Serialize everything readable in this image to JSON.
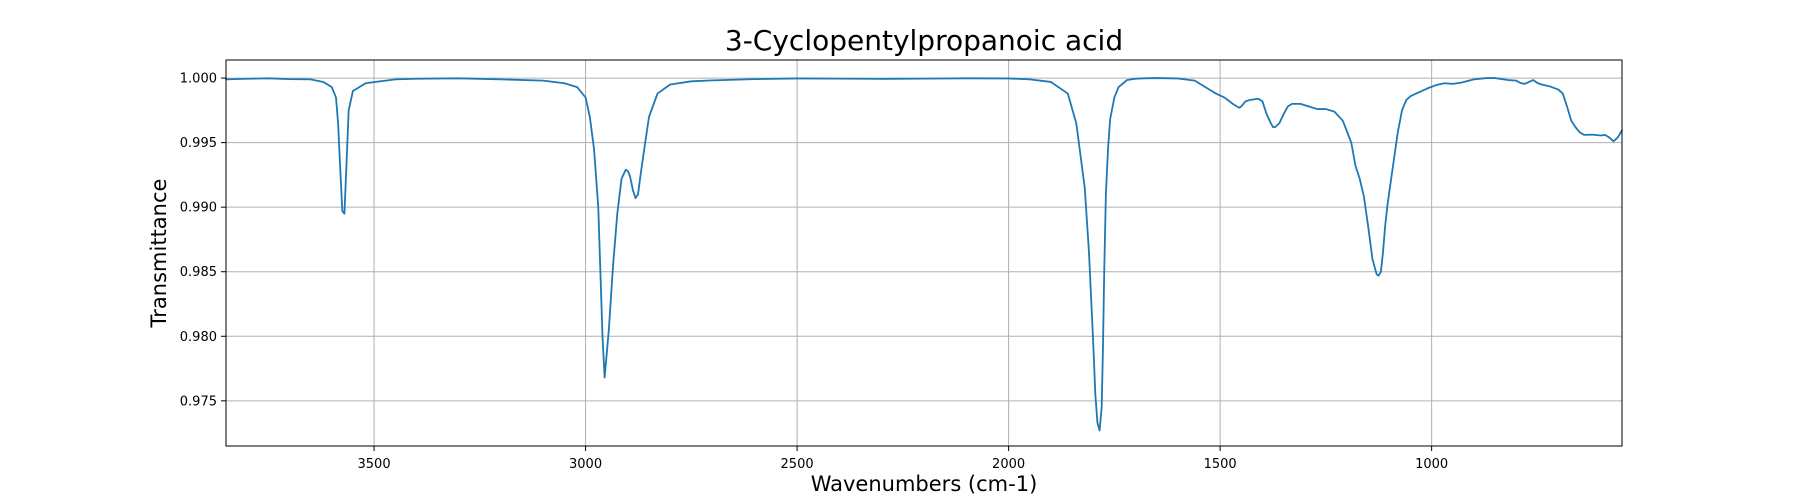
{
  "chart_data": {
    "type": "line",
    "title": "3-Cyclopentylpropanoic acid",
    "xlabel": "Wavenumbers (cm-1)",
    "ylabel": "Transmittance",
    "xlim": [
      3850,
      550
    ],
    "ylim": [
      0.9715,
      1.0014
    ],
    "x_reversed": true,
    "grid": true,
    "x_ticks": [
      3500,
      3000,
      2500,
      2000,
      1500,
      1000
    ],
    "x_tick_labels": [
      "3500",
      "3000",
      "2500",
      "2000",
      "1500",
      "1000"
    ],
    "y_ticks": [
      0.975,
      0.98,
      0.985,
      0.99,
      0.995,
      1.0
    ],
    "y_tick_labels": [
      "0.975",
      "0.980",
      "0.985",
      "0.990",
      "0.995",
      "1.000"
    ],
    "colors": {
      "line": "#1f77b4",
      "grid": "#b0b0b0",
      "frame": "#000000"
    },
    "series": [
      {
        "name": "Transmittance",
        "x": [
          3850,
          3800,
          3750,
          3700,
          3650,
          3620,
          3600,
          3590,
          3585,
          3580,
          3575,
          3570,
          3565,
          3560,
          3550,
          3520,
          3450,
          3400,
          3300,
          3200,
          3100,
          3050,
          3020,
          3000,
          2990,
          2980,
          2970,
          2965,
          2960,
          2955,
          2945,
          2935,
          2925,
          2915,
          2905,
          2900,
          2895,
          2888,
          2882,
          2876,
          2870,
          2860,
          2850,
          2830,
          2800,
          2750,
          2700,
          2600,
          2500,
          2400,
          2300,
          2200,
          2100,
          2000,
          1950,
          1900,
          1860,
          1840,
          1820,
          1810,
          1800,
          1795,
          1790,
          1785,
          1780,
          1777,
          1774,
          1770,
          1765,
          1760,
          1750,
          1740,
          1720,
          1700,
          1680,
          1650,
          1600,
          1560,
          1530,
          1510,
          1490,
          1470,
          1460,
          1455,
          1450,
          1440,
          1430,
          1410,
          1400,
          1390,
          1380,
          1375,
          1370,
          1360,
          1350,
          1340,
          1330,
          1310,
          1290,
          1270,
          1250,
          1230,
          1210,
          1190,
          1180,
          1170,
          1160,
          1150,
          1140,
          1130,
          1125,
          1120,
          1115,
          1110,
          1105,
          1100,
          1090,
          1080,
          1070,
          1060,
          1050,
          1040,
          1030,
          1010,
          990,
          970,
          950,
          930,
          900,
          870,
          850,
          820,
          800,
          790,
          780,
          770,
          760,
          750,
          740,
          720,
          700,
          690,
          680,
          670,
          660,
          650,
          640,
          620,
          600,
          590,
          580,
          570,
          560,
          550
        ],
        "y": [
          0.9999,
          0.99995,
          0.99998,
          0.99992,
          0.9999,
          0.9997,
          0.9993,
          0.9985,
          0.9965,
          0.993,
          0.9897,
          0.9895,
          0.9935,
          0.9975,
          0.999,
          0.9996,
          0.9999,
          0.99995,
          0.99998,
          0.9999,
          0.9998,
          0.9996,
          0.9993,
          0.9985,
          0.997,
          0.9945,
          0.99,
          0.985,
          0.98,
          0.9768,
          0.9805,
          0.9855,
          0.9895,
          0.9922,
          0.9929,
          0.9928,
          0.9924,
          0.9913,
          0.9907,
          0.991,
          0.9925,
          0.9948,
          0.997,
          0.9988,
          0.9995,
          0.99975,
          0.99982,
          0.99992,
          0.99997,
          0.99996,
          0.99994,
          0.99996,
          0.99998,
          0.99997,
          0.9999,
          0.9997,
          0.9988,
          0.9965,
          0.9915,
          0.9865,
          0.9795,
          0.9755,
          0.9733,
          0.9727,
          0.9745,
          0.979,
          0.985,
          0.991,
          0.9945,
          0.9968,
          0.9985,
          0.9993,
          0.99985,
          0.99995,
          0.99998,
          1.0,
          0.99997,
          0.9998,
          0.9992,
          0.9988,
          0.9985,
          0.998,
          0.9978,
          0.9977,
          0.9978,
          0.9982,
          0.9983,
          0.9984,
          0.9982,
          0.9972,
          0.9965,
          0.9962,
          0.9962,
          0.9965,
          0.9972,
          0.9978,
          0.998,
          0.998,
          0.9978,
          0.9976,
          0.9976,
          0.9974,
          0.9967,
          0.995,
          0.9932,
          0.9922,
          0.9908,
          0.9885,
          0.986,
          0.9848,
          0.9847,
          0.985,
          0.9865,
          0.9885,
          0.99,
          0.9912,
          0.9935,
          0.9958,
          0.9975,
          0.9983,
          0.9986,
          0.99875,
          0.9989,
          0.9992,
          0.99945,
          0.9996,
          0.99955,
          0.99965,
          0.9999,
          1.0,
          1.0,
          0.99985,
          0.9998,
          0.99962,
          0.99955,
          0.9997,
          0.99985,
          0.99962,
          0.9995,
          0.99935,
          0.9991,
          0.9988,
          0.9978,
          0.9967,
          0.9962,
          0.9958,
          0.9956,
          0.99562,
          0.99555,
          0.9956,
          0.9954,
          0.9951,
          0.9954,
          0.99595
        ]
      }
    ]
  }
}
